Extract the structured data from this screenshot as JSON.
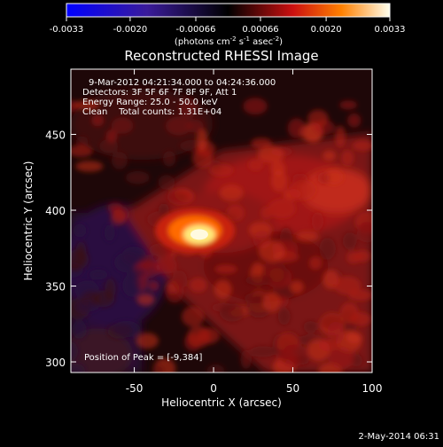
{
  "chart_data": {
    "type": "heatmap",
    "title": "Reconstructed RHESSI Image",
    "colorbar": {
      "min": -0.0033,
      "max": 0.0033,
      "ticks": [
        "-0.0033",
        "-0.0020",
        "-0.00066",
        "0.00066",
        "0.0020",
        "0.0033"
      ],
      "unit_parts": [
        "(photons cm",
        "-2",
        " s",
        "-1",
        " asec",
        "-2",
        ")"
      ]
    },
    "xlabel": "Heliocentric X (arcsec)",
    "ylabel": "Heliocentric Y (arcsec)",
    "xlim": [
      -90,
      100
    ],
    "ylim": [
      293,
      493
    ],
    "x_ticks": [
      {
        "value": -50,
        "label": "-50"
      },
      {
        "value": 0,
        "label": "0"
      },
      {
        "value": 50,
        "label": "50"
      },
      {
        "value": 100,
        "label": "100"
      }
    ],
    "y_ticks": [
      {
        "value": 300,
        "label": "300"
      },
      {
        "value": 350,
        "label": "350"
      },
      {
        "value": 400,
        "label": "400"
      },
      {
        "value": 450,
        "label": "450"
      }
    ],
    "peak": {
      "x": -9,
      "y": 384
    },
    "annotations": [
      "9-Mar-2012 04:21:34.000 to 04:24:36.000",
      "Detectors: 3F 5F 6F 7F 8F 9F, Att 1",
      "Energy Range: 25.0 - 50.0 keV",
      "Clean    Total counts: 1.31E+04"
    ],
    "peak_label": "Position of Peak = [-9,384]",
    "footer_date": "2-May-2014 06:31"
  }
}
